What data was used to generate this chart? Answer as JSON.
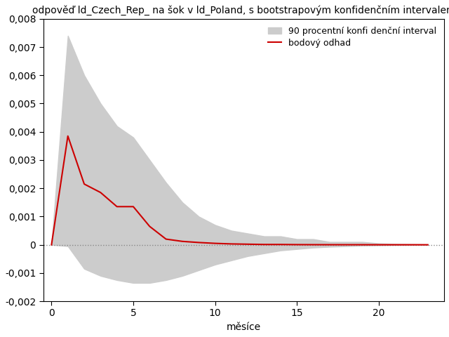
{
  "title": "odpověď ld_Czech_Rep_ na šok v ld_Poland, s bootstrapovým konfi denčním intervalem",
  "xlabel": "měsíce",
  "ylabel": "",
  "xlim": [
    -0.5,
    24
  ],
  "ylim": [
    -0.002,
    0.008
  ],
  "yticks": [
    -0.002,
    -0.001,
    0,
    0.001,
    0.002,
    0.003,
    0.004,
    0.005,
    0.006,
    0.007,
    0.008
  ],
  "xticks": [
    0,
    5,
    10,
    15,
    20
  ],
  "legend_ci": "90 procentní konfi denční interval",
  "legend_point": "bodový odhad",
  "ci_color": "#cccccc",
  "line_color": "#cc0000",
  "zero_line_color": "#888888",
  "irf_x": [
    0,
    1,
    2,
    3,
    4,
    5,
    6,
    7,
    8,
    9,
    10,
    11,
    12,
    13,
    14,
    15,
    16,
    17,
    18,
    19,
    20,
    21,
    22,
    23
  ],
  "irf_y": [
    0.0,
    0.00385,
    0.00215,
    0.00185,
    0.00135,
    0.00135,
    0.00065,
    0.0002,
    0.00012,
    8e-05,
    5e-05,
    3e-05,
    2e-05,
    1e-05,
    1e-05,
    5e-06,
    3e-06,
    2e-06,
    1e-06,
    1e-06,
    0.0,
    0.0,
    0.0,
    0.0
  ],
  "ci_upper": [
    0.0,
    0.0074,
    0.006,
    0.005,
    0.0042,
    0.0038,
    0.003,
    0.0022,
    0.0015,
    0.001,
    0.0007,
    0.0005,
    0.0004,
    0.0003,
    0.0003,
    0.0002,
    0.0002,
    0.0001,
    0.0001,
    0.0001,
    5e-05,
    3e-05,
    2e-05,
    1e-05
  ],
  "ci_lower": [
    0.0,
    -5e-05,
    -0.00085,
    -0.0011,
    -0.00125,
    -0.00135,
    -0.00135,
    -0.00125,
    -0.0011,
    -0.0009,
    -0.0007,
    -0.00055,
    -0.0004,
    -0.0003,
    -0.0002,
    -0.00015,
    -0.0001,
    -7e-05,
    -5e-05,
    -3e-05,
    -2e-05,
    -1e-05,
    -5e-06,
    0.0
  ],
  "background_color": "#ffffff",
  "title_fontsize": 10,
  "label_fontsize": 10,
  "tick_fontsize": 10
}
